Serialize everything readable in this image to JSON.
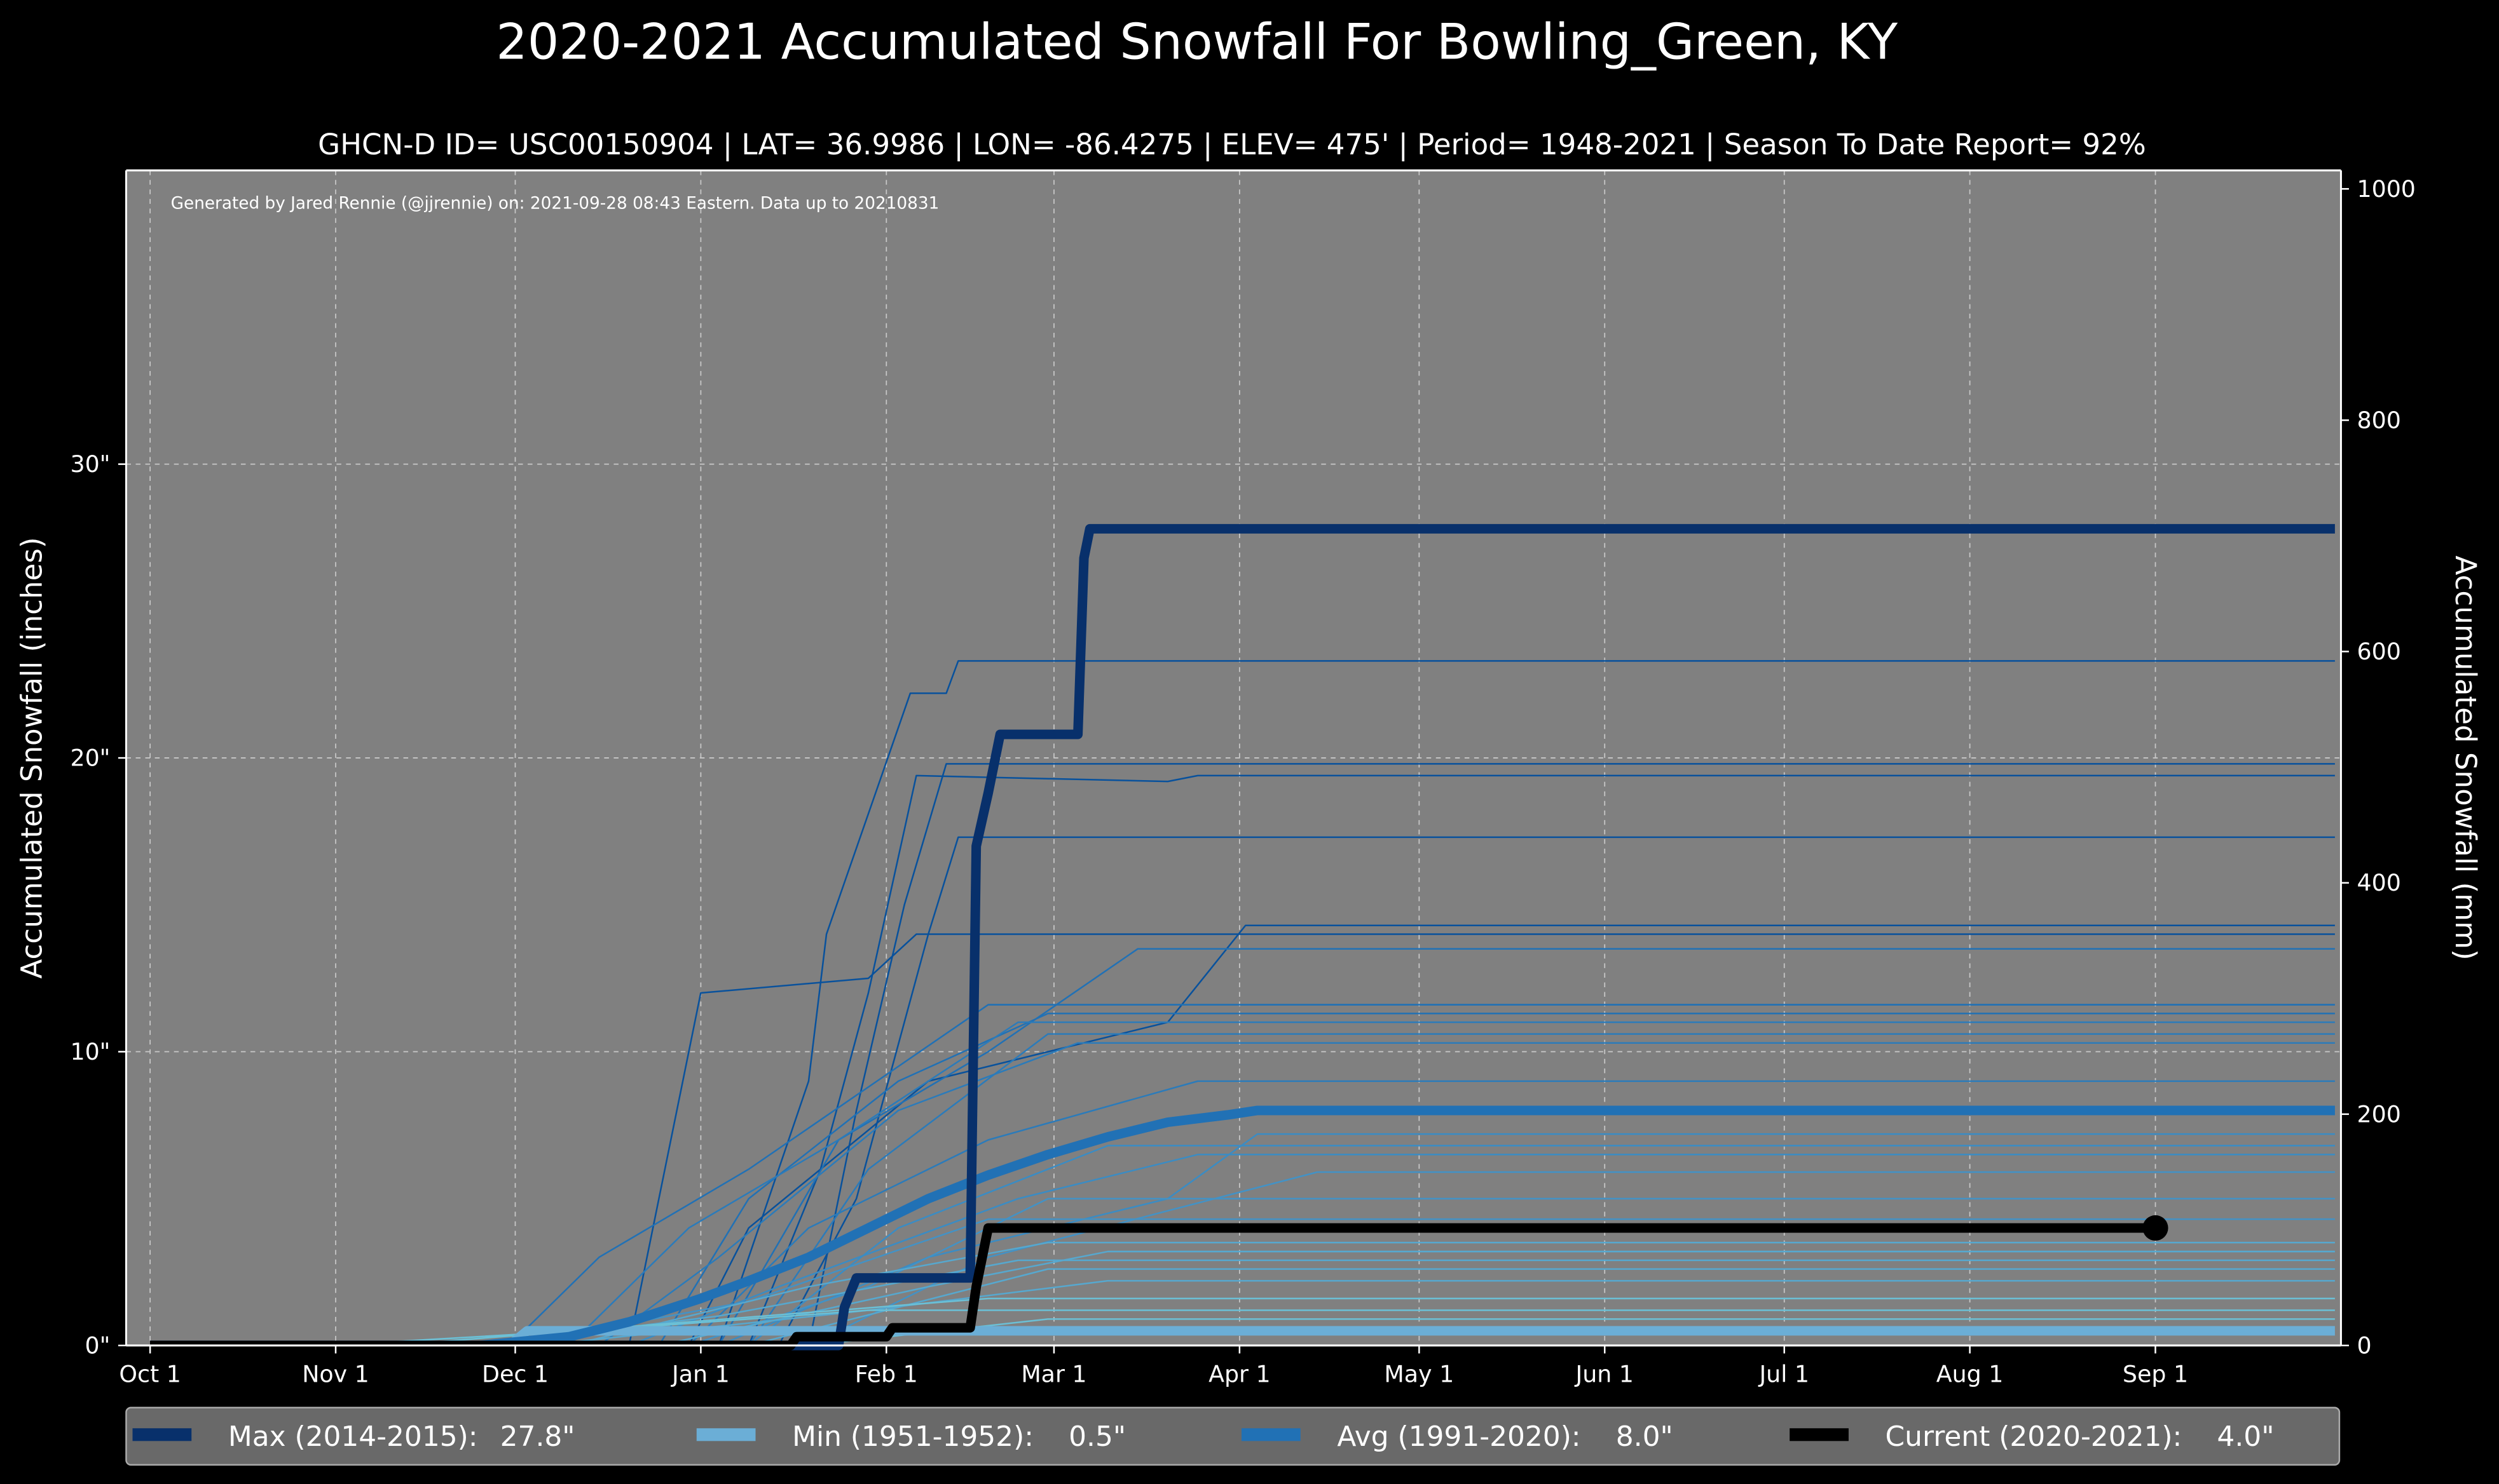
{
  "chart_data": {
    "type": "line",
    "title": "2020-2021 Accumulated Snowfall For Bowling_Green, KY",
    "subtitle": "GHCN-D ID= USC00150904 | LAT= 36.9986 | LON= -86.4275 | ELEV= 475' | Period= 1948-2021 | Season To Date Report= 92%",
    "credit": "Generated by Jared Rennie (@jjrennie) on: 2021-09-28 08:43 Eastern. Data up to 20210831",
    "ylabel": "Accumulated Snowfall (inches)",
    "ylabel_right": "Accumulated Snowfall (mm)",
    "x_unit": "days since Oct 1",
    "xlim": [
      -4,
      366
    ],
    "ylim": [
      0,
      40
    ],
    "grid": true,
    "legend_placement": "bottom",
    "x_ticks": [
      {
        "day": 0,
        "label": "Oct 1"
      },
      {
        "day": 31,
        "label": "Nov 1"
      },
      {
        "day": 61,
        "label": "Dec 1"
      },
      {
        "day": 92,
        "label": "Jan 1"
      },
      {
        "day": 123,
        "label": "Feb 1"
      },
      {
        "day": 151,
        "label": "Mar 1"
      },
      {
        "day": 182,
        "label": "Apr 1"
      },
      {
        "day": 212,
        "label": "May 1"
      },
      {
        "day": 243,
        "label": "Jun 1"
      },
      {
        "day": 273,
        "label": "Jul 1"
      },
      {
        "day": 304,
        "label": "Aug 1"
      },
      {
        "day": 335,
        "label": "Sep 1"
      }
    ],
    "y_ticks": [
      {
        "value": 0,
        "label": "0\""
      },
      {
        "value": 10,
        "label": "10\""
      },
      {
        "value": 20,
        "label": "20\""
      },
      {
        "value": 30,
        "label": "30\""
      }
    ],
    "y_ticks_right": [
      {
        "value": 0,
        "label": "0"
      },
      {
        "value": 200,
        "label": "200"
      },
      {
        "value": 400,
        "label": "400"
      },
      {
        "value": 600,
        "label": "600"
      },
      {
        "value": 800,
        "label": "800"
      },
      {
        "value": 1000,
        "label": "1000"
      }
    ],
    "series": [
      {
        "name": "Max (2014-2015)",
        "legend_value": "27.8\"",
        "color": "#08306b",
        "width": 6,
        "points": [
          [
            0,
            0
          ],
          [
            115,
            0
          ],
          [
            116,
            1.3
          ],
          [
            118,
            2.3
          ],
          [
            137,
            2.3
          ],
          [
            138,
            17
          ],
          [
            140,
            18.8
          ],
          [
            142,
            20.8
          ],
          [
            155,
            20.8
          ],
          [
            156,
            26.8
          ],
          [
            157,
            27.8
          ],
          [
            366,
            27.8
          ]
        ]
      },
      {
        "name": "Min (1951-1952)",
        "legend_value": "0.5\"",
        "color": "#6baed6",
        "width": 6,
        "points": [
          [
            60,
            0
          ],
          [
            63,
            0.5
          ],
          [
            366,
            0.5
          ]
        ]
      },
      {
        "name": "Avg (1991-2020)",
        "legend_value": "8.0\"",
        "color": "#2171b5",
        "width": 6,
        "points": [
          [
            0,
            0
          ],
          [
            55,
            0
          ],
          [
            70,
            0.3
          ],
          [
            80,
            0.8
          ],
          [
            92,
            1.6
          ],
          [
            100,
            2.2
          ],
          [
            110,
            3.0
          ],
          [
            120,
            4.0
          ],
          [
            130,
            5.0
          ],
          [
            140,
            5.8
          ],
          [
            150,
            6.5
          ],
          [
            160,
            7.1
          ],
          [
            170,
            7.6
          ],
          [
            180,
            7.85
          ],
          [
            185,
            8.0
          ],
          [
            366,
            8.0
          ]
        ]
      },
      {
        "name": "Current (2020-2021)",
        "legend_value": "4.0\"",
        "color": "#000000",
        "width": 6,
        "points": [
          [
            0,
            0
          ],
          [
            107,
            0
          ],
          [
            108,
            0.3
          ],
          [
            123,
            0.3
          ],
          [
            124,
            0.6
          ],
          [
            137,
            0.6
          ],
          [
            138,
            2.0
          ],
          [
            140,
            4.0
          ],
          [
            335,
            4.0
          ]
        ]
      }
    ],
    "historical": [
      [
        [
          95,
          0
        ],
        [
          100,
          3
        ],
        [
          110,
          9
        ],
        [
          113,
          14
        ],
        [
          127,
          22.2
        ],
        [
          133,
          22.2
        ],
        [
          135,
          23.3
        ],
        [
          366,
          23.3
        ]
      ],
      [
        [
          100,
          0
        ],
        [
          112,
          6
        ],
        [
          120,
          12
        ],
        [
          128,
          19.4
        ],
        [
          170,
          19.2
        ],
        [
          175,
          19.4
        ],
        [
          366,
          19.4
        ]
      ],
      [
        [
          110,
          0
        ],
        [
          118,
          8
        ],
        [
          126,
          15
        ],
        [
          133,
          19.8
        ],
        [
          366,
          19.8
        ]
      ],
      [
        [
          105,
          0
        ],
        [
          118,
          5
        ],
        [
          130,
          14
        ],
        [
          135,
          17.3
        ],
        [
          366,
          17.3
        ]
      ],
      [
        [
          90,
          0
        ],
        [
          100,
          4
        ],
        [
          130,
          9
        ],
        [
          170,
          11
        ],
        [
          183,
          14.3
        ],
        [
          366,
          14.3
        ]
      ],
      [
        [
          80,
          0
        ],
        [
          88,
          8
        ],
        [
          92,
          12
        ],
        [
          120,
          12.5
        ],
        [
          128,
          14.0
        ],
        [
          366,
          14.0
        ]
      ],
      [
        [
          95,
          0
        ],
        [
          115,
          7
        ],
        [
          140,
          10
        ],
        [
          165,
          13.5
        ],
        [
          366,
          13.5
        ]
      ],
      [
        [
          60,
          0
        ],
        [
          75,
          3
        ],
        [
          100,
          6
        ],
        [
          140,
          11.6
        ],
        [
          366,
          11.6
        ]
      ],
      [
        [
          85,
          0
        ],
        [
          100,
          5
        ],
        [
          125,
          9
        ],
        [
          150,
          11.3
        ],
        [
          366,
          11.3
        ]
      ],
      [
        [
          70,
          0
        ],
        [
          90,
          4
        ],
        [
          115,
          7
        ],
        [
          145,
          11.0
        ],
        [
          366,
          11.0
        ]
      ],
      [
        [
          100,
          0
        ],
        [
          120,
          6
        ],
        [
          150,
          10.6
        ],
        [
          366,
          10.6
        ]
      ],
      [
        [
          75,
          0
        ],
        [
          95,
          3
        ],
        [
          125,
          8
        ],
        [
          155,
          10.3
        ],
        [
          366,
          10.3
        ]
      ],
      [
        [
          90,
          0
        ],
        [
          110,
          4
        ],
        [
          140,
          7
        ],
        [
          175,
          9.0
        ],
        [
          366,
          9.0
        ]
      ],
      [
        [
          95,
          0
        ],
        [
          130,
          3
        ],
        [
          170,
          5
        ],
        [
          185,
          7.2
        ],
        [
          366,
          7.2
        ]
      ],
      [
        [
          100,
          0
        ],
        [
          125,
          4
        ],
        [
          160,
          6.8
        ],
        [
          366,
          6.8
        ]
      ],
      [
        [
          80,
          0
        ],
        [
          105,
          2
        ],
        [
          145,
          5
        ],
        [
          175,
          6.5
        ],
        [
          366,
          6.5
        ]
      ],
      [
        [
          110,
          0
        ],
        [
          140,
          3
        ],
        [
          195,
          5.9
        ],
        [
          366,
          5.9
        ]
      ],
      [
        [
          90,
          0
        ],
        [
          120,
          2
        ],
        [
          150,
          5.0
        ],
        [
          366,
          5.0
        ]
      ],
      [
        [
          60,
          0
        ],
        [
          100,
          1.5
        ],
        [
          140,
          4.3
        ],
        [
          366,
          4.3
        ]
      ],
      [
        [
          70,
          0
        ],
        [
          110,
          2
        ],
        [
          150,
          3.5
        ],
        [
          366,
          3.5
        ]
      ],
      [
        [
          85,
          0
        ],
        [
          130,
          2
        ],
        [
          160,
          3.2
        ],
        [
          366,
          3.2
        ]
      ],
      [
        [
          55,
          0
        ],
        [
          95,
          1
        ],
        [
          145,
          2.9
        ],
        [
          366,
          2.9
        ]
      ],
      [
        [
          100,
          0
        ],
        [
          150,
          2.6
        ],
        [
          366,
          2.6
        ]
      ],
      [
        [
          65,
          0
        ],
        [
          120,
          1.2
        ],
        [
          160,
          2.2
        ],
        [
          366,
          2.2
        ]
      ],
      [
        [
          40,
          0
        ],
        [
          90,
          0.8
        ],
        [
          140,
          1.6
        ],
        [
          366,
          1.6
        ]
      ],
      [
        [
          30,
          0
        ],
        [
          80,
          0.6
        ],
        [
          120,
          1.2
        ],
        [
          366,
          1.2
        ]
      ],
      [
        [
          110,
          0
        ],
        [
          150,
          0.9
        ],
        [
          366,
          0.9
        ]
      ]
    ]
  },
  "legend": [
    {
      "label": "Max (2014-2015):",
      "value": "27.8\"",
      "color": "#08306b"
    },
    {
      "label": "Min (1951-1952):",
      "value": "0.5\"",
      "color": "#6baed6"
    },
    {
      "label": "Avg (1991-2020):",
      "value": "8.0\"",
      "color": "#2171b5"
    },
    {
      "label": "Current (2020-2021):",
      "value": "4.0\"",
      "color": "#000000"
    }
  ]
}
